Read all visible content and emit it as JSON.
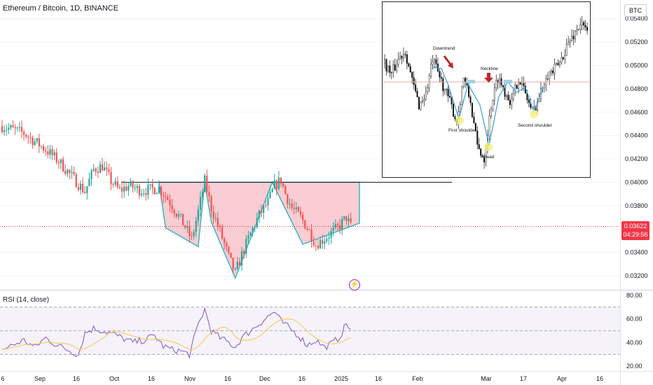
{
  "header": {
    "symbol": "Ethereum / Bitcoin, 1D, BINANCE",
    "currency": "BTC"
  },
  "last_price": {
    "value": "0.03622",
    "countdown": "04:29:56"
  },
  "rsi": {
    "title": "RSI (14, close)"
  },
  "inset": {
    "labels": {
      "downtrend": "Downtrend",
      "neckline": "Neckline",
      "first_shoulder": "First shoulder",
      "head": "Head",
      "second_shoulder": "Second shoulder"
    }
  },
  "colors": {
    "up": "#26a69a",
    "down": "#ef5350",
    "pattern_fill": "#f8bbc4",
    "pattern_stroke": "#36b8c9",
    "rsi_line": "#7e57c2",
    "rsi_ma": "#f7c948",
    "price_badge": "#f23645"
  },
  "chart_data": [
    {
      "type": "candlestick",
      "title": "Ethereum / Bitcoin, 1D, BINANCE",
      "x_ticks": [
        "6",
        "Sep",
        "16",
        "Oct",
        "16",
        "Nov",
        "16",
        "Dec",
        "16",
        "2025",
        "16",
        "Feb",
        "Mar",
        "17",
        "Apr",
        "16"
      ],
      "y_ticks": [
        "0.05400",
        "0.05200",
        "0.05000",
        "0.04800",
        "0.04600",
        "0.04400",
        "0.04200",
        "0.04000",
        "0.03800",
        "0.03600",
        "0.03400",
        "0.03200"
      ],
      "ylim": [
        0.0308,
        0.0556
      ],
      "price_anchors": [
        [
          0,
          0.0448
        ],
        [
          10,
          0.0442
        ],
        [
          20,
          0.0428
        ],
        [
          26,
          0.0418
        ],
        [
          32,
          0.0405
        ],
        [
          38,
          0.0392
        ],
        [
          42,
          0.0411
        ],
        [
          46,
          0.0414
        ],
        [
          50,
          0.0401
        ],
        [
          54,
          0.0393
        ],
        [
          58,
          0.0397
        ],
        [
          64,
          0.0393
        ],
        [
          72,
          0.0395
        ],
        [
          76,
          0.0386
        ],
        [
          80,
          0.0374
        ],
        [
          84,
          0.0362
        ],
        [
          87,
          0.0351
        ],
        [
          90,
          0.0375
        ],
        [
          93,
          0.0401
        ],
        [
          96,
          0.0378
        ],
        [
          100,
          0.0358
        ],
        [
          104,
          0.0336
        ],
        [
          107,
          0.0322
        ],
        [
          110,
          0.0338
        ],
        [
          114,
          0.0356
        ],
        [
          118,
          0.0372
        ],
        [
          122,
          0.0383
        ],
        [
          125,
          0.0397
        ],
        [
          128,
          0.0402
        ],
        [
          130,
          0.039
        ],
        [
          133,
          0.0378
        ],
        [
          137,
          0.037
        ],
        [
          141,
          0.0358
        ],
        [
          144,
          0.0347
        ],
        [
          148,
          0.0352
        ],
        [
          152,
          0.0358
        ],
        [
          155,
          0.0363
        ],
        [
          158,
          0.037
        ],
        [
          160,
          0.0362
        ]
      ],
      "neckline": 0.04,
      "last_price": 0.03622,
      "pattern": "inverse head and shoulders (drawn, incl. right projection)",
      "pattern_points": [
        [
          72,
          0.04
        ],
        [
          75,
          0.0361
        ],
        [
          90,
          0.0345
        ],
        [
          93,
          0.04
        ],
        [
          96,
          0.0366
        ],
        [
          107,
          0.0318
        ],
        [
          124,
          0.04
        ],
        [
          138,
          0.0347
        ],
        [
          164,
          0.0365
        ],
        [
          164,
          0.04
        ]
      ]
    },
    {
      "type": "line",
      "title": "RSI (14, close)",
      "y_ticks": [
        "80.00",
        "60.00",
        "40.00",
        "20.00"
      ],
      "ylim": [
        16,
        84
      ],
      "bands": [
        70,
        50,
        30
      ],
      "rsi_anchors": [
        [
          0,
          34
        ],
        [
          5,
          38
        ],
        [
          10,
          42
        ],
        [
          15,
          36
        ],
        [
          20,
          44
        ],
        [
          25,
          38
        ],
        [
          30,
          34
        ],
        [
          35,
          30
        ],
        [
          38,
          48
        ],
        [
          42,
          52
        ],
        [
          46,
          50
        ],
        [
          50,
          48
        ],
        [
          55,
          44
        ],
        [
          60,
          40
        ],
        [
          65,
          42
        ],
        [
          70,
          46
        ],
        [
          74,
          37
        ],
        [
          78,
          34
        ],
        [
          82,
          33
        ],
        [
          86,
          30
        ],
        [
          90,
          55
        ],
        [
          93,
          68
        ],
        [
          96,
          50
        ],
        [
          100,
          44
        ],
        [
          104,
          40
        ],
        [
          107,
          36
        ],
        [
          110,
          44
        ],
        [
          114,
          50
        ],
        [
          118,
          56
        ],
        [
          122,
          62
        ],
        [
          125,
          66
        ],
        [
          128,
          58
        ],
        [
          132,
          52
        ],
        [
          136,
          46
        ],
        [
          140,
          38
        ],
        [
          144,
          42
        ],
        [
          148,
          36
        ],
        [
          152,
          40
        ],
        [
          155,
          45
        ],
        [
          158,
          56
        ],
        [
          160,
          51
        ]
      ]
    },
    {
      "type": "candlestick",
      "title": "inset: inverse head and shoulders example",
      "annotations": [
        "Downtrend",
        "Neckline",
        "First shoulder",
        "Head",
        "Second shoulder"
      ],
      "neckline": 0.0489,
      "inset_anchors": [
        [
          0,
          0.05
        ],
        [
          4,
          0.0492
        ],
        [
          8,
          0.0503
        ],
        [
          12,
          0.0509
        ],
        [
          16,
          0.0487
        ],
        [
          20,
          0.047
        ],
        [
          24,
          0.0478
        ],
        [
          28,
          0.0502
        ],
        [
          32,
          0.049
        ],
        [
          38,
          0.0472
        ],
        [
          42,
          0.0458
        ],
        [
          46,
          0.049
        ],
        [
          50,
          0.0472
        ],
        [
          54,
          0.044
        ],
        [
          58,
          0.0432
        ],
        [
          62,
          0.047
        ],
        [
          66,
          0.049
        ],
        [
          70,
          0.048
        ],
        [
          74,
          0.0472
        ],
        [
          78,
          0.049
        ],
        [
          82,
          0.0478
        ],
        [
          86,
          0.0465
        ],
        [
          90,
          0.0475
        ],
        [
          94,
          0.0492
        ],
        [
          98,
          0.0494
        ],
        [
          102,
          0.05
        ],
        [
          106,
          0.0512
        ],
        [
          110,
          0.052
        ],
        [
          114,
          0.0528
        ],
        [
          118,
          0.0522
        ]
      ]
    }
  ]
}
